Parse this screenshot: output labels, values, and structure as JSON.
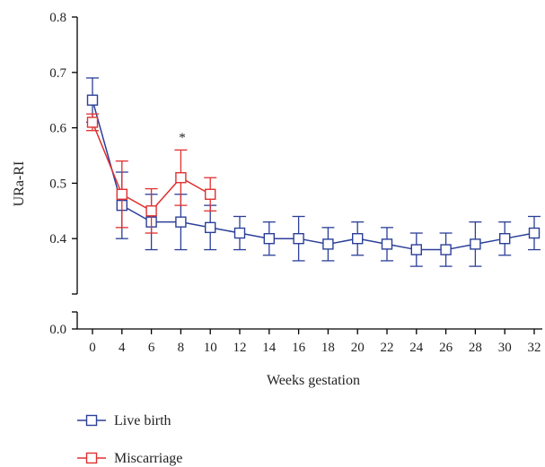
{
  "chart_data": {
    "type": "line",
    "title": "",
    "xlabel": "Weeks gestation",
    "ylabel": "URa-RI",
    "x_ticks": [
      "0",
      "4",
      "6",
      "8",
      "10",
      "12",
      "14",
      "16",
      "18",
      "20",
      "22",
      "24",
      "26",
      "28",
      "30",
      "32"
    ],
    "y_ticks": [
      "0.0",
      "0.4",
      "0.5",
      "0.6",
      "0.7",
      "0.8"
    ],
    "y_axis_break": true,
    "y_upper_range": [
      0.3,
      0.8
    ],
    "legend_position": "bottom-left",
    "annotation": {
      "text": "*",
      "x": "8"
    },
    "series": [
      {
        "name": "Live birth",
        "color": "#2b3f99",
        "marker": "square-open",
        "x": [
          "0",
          "4",
          "6",
          "8",
          "10",
          "12",
          "14",
          "16",
          "18",
          "20",
          "22",
          "24",
          "26",
          "28",
          "30",
          "32"
        ],
        "values": [
          0.65,
          0.46,
          0.43,
          0.43,
          0.42,
          0.41,
          0.4,
          0.4,
          0.39,
          0.4,
          0.39,
          0.38,
          0.38,
          0.39,
          0.4,
          0.41
        ],
        "error": [
          0.04,
          0.06,
          0.05,
          0.05,
          0.04,
          0.03,
          0.03,
          0.04,
          0.03,
          0.03,
          0.03,
          0.03,
          0.03,
          0.04,
          0.03,
          0.03
        ]
      },
      {
        "name": "Miscarriage",
        "color": "#e03030",
        "marker": "square-open",
        "x": [
          "0",
          "4",
          "6",
          "8",
          "10"
        ],
        "values": [
          0.61,
          0.48,
          0.45,
          0.51,
          0.48
        ],
        "error": [
          0.015,
          0.06,
          0.04,
          0.05,
          0.03
        ]
      }
    ]
  }
}
